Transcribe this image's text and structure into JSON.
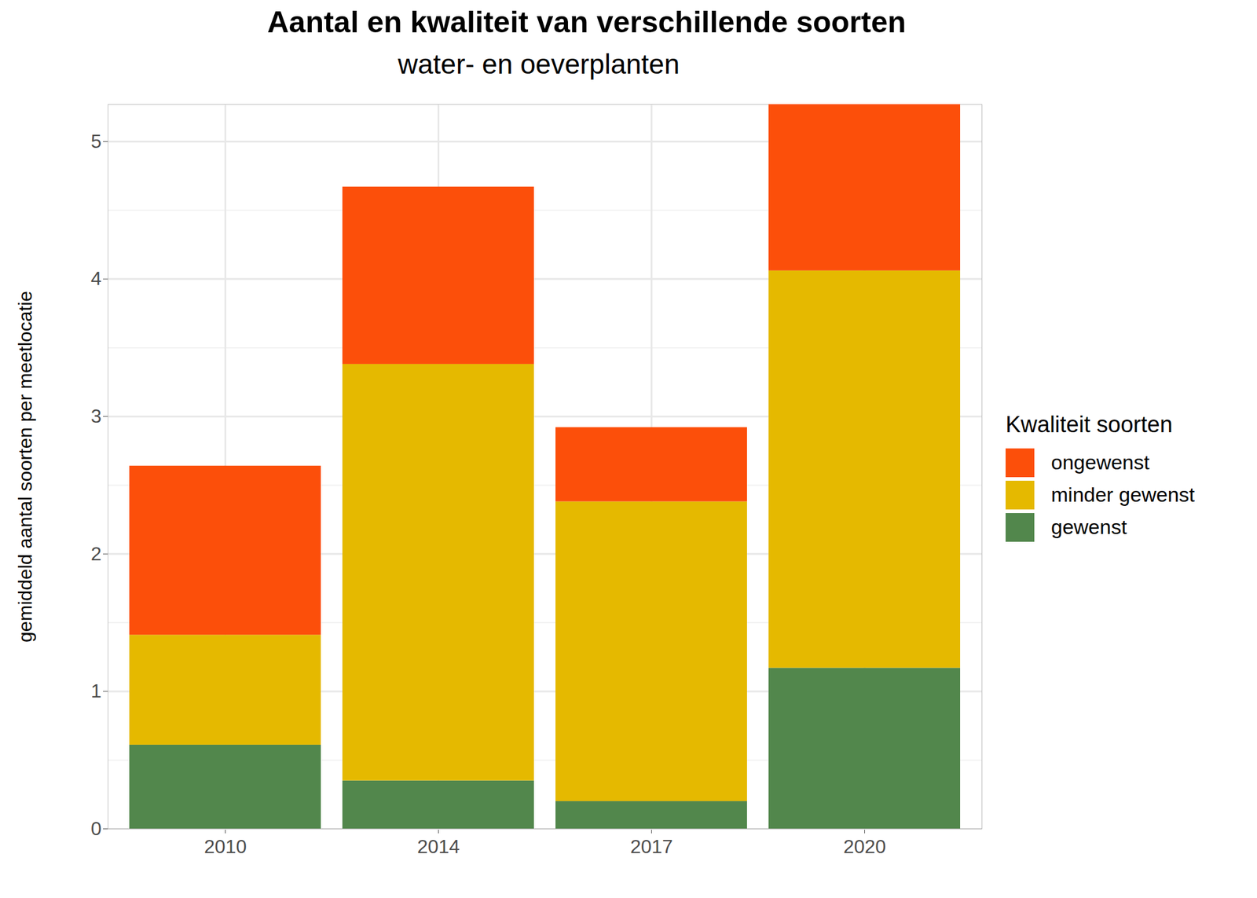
{
  "chart_data": {
    "type": "bar",
    "stacked": true,
    "title": "Aantal en kwaliteit van verschillende soorten",
    "subtitle": "water- en oeverplanten",
    "y_label": "gemiddeld aantal soorten per meetlocatie",
    "legend_title": "Kwaliteit soorten",
    "legend": "right",
    "categories": [
      "2010",
      "2014",
      "2017",
      "2020"
    ],
    "series": [
      {
        "name": "gewenst",
        "color": "#52874c",
        "values": [
          0.61,
          0.35,
          0.2,
          1.17
        ]
      },
      {
        "name": "minder gewenst",
        "color": "#e5b900",
        "values": [
          0.8,
          3.03,
          2.18,
          2.89
        ]
      },
      {
        "name": "ongewenst",
        "color": "#fc4f0a",
        "values": [
          1.23,
          1.29,
          0.54,
          1.21
        ]
      }
    ],
    "ylim": [
      0,
      5.27
    ],
    "yticks": [
      0,
      1,
      2,
      3,
      4,
      5
    ],
    "grid": true
  }
}
